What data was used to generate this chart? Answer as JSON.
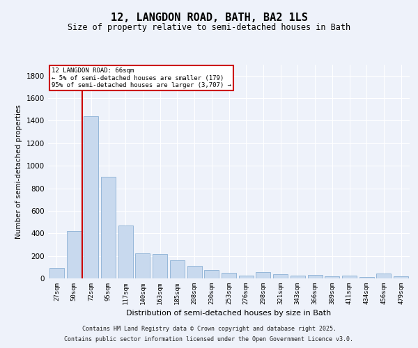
{
  "title": "12, LANGDON ROAD, BATH, BA2 1LS",
  "subtitle": "Size of property relative to semi-detached houses in Bath",
  "xlabel": "Distribution of semi-detached houses by size in Bath",
  "ylabel": "Number of semi-detached properties",
  "categories": [
    "27sqm",
    "50sqm",
    "72sqm",
    "95sqm",
    "117sqm",
    "140sqm",
    "163sqm",
    "185sqm",
    "208sqm",
    "230sqm",
    "253sqm",
    "276sqm",
    "298sqm",
    "321sqm",
    "343sqm",
    "366sqm",
    "389sqm",
    "411sqm",
    "434sqm",
    "456sqm",
    "479sqm"
  ],
  "bar_heights": [
    90,
    420,
    1440,
    900,
    470,
    220,
    215,
    160,
    110,
    75,
    50,
    25,
    55,
    40,
    22,
    30,
    18,
    22,
    12,
    45,
    18
  ],
  "bar_color": "#c8d9ee",
  "bar_edge_color": "#8ab0d4",
  "vline_x_index": 1.5,
  "subject_label": "12 LANGDON ROAD: 66sqm",
  "annotation_line1": "← 5% of semi-detached houses are smaller (179)",
  "annotation_line2": "95% of semi-detached houses are larger (3,707) →",
  "annotation_box_facecolor": "#ffffff",
  "annotation_box_edgecolor": "#cc0000",
  "vline_color": "#cc0000",
  "ylim": [
    0,
    1900
  ],
  "yticks": [
    0,
    200,
    400,
    600,
    800,
    1000,
    1200,
    1400,
    1600,
    1800
  ],
  "background_color": "#eef2fa",
  "grid_color": "#ffffff",
  "footer_line1": "Contains HM Land Registry data © Crown copyright and database right 2025.",
  "footer_line2": "Contains public sector information licensed under the Open Government Licence v3.0."
}
